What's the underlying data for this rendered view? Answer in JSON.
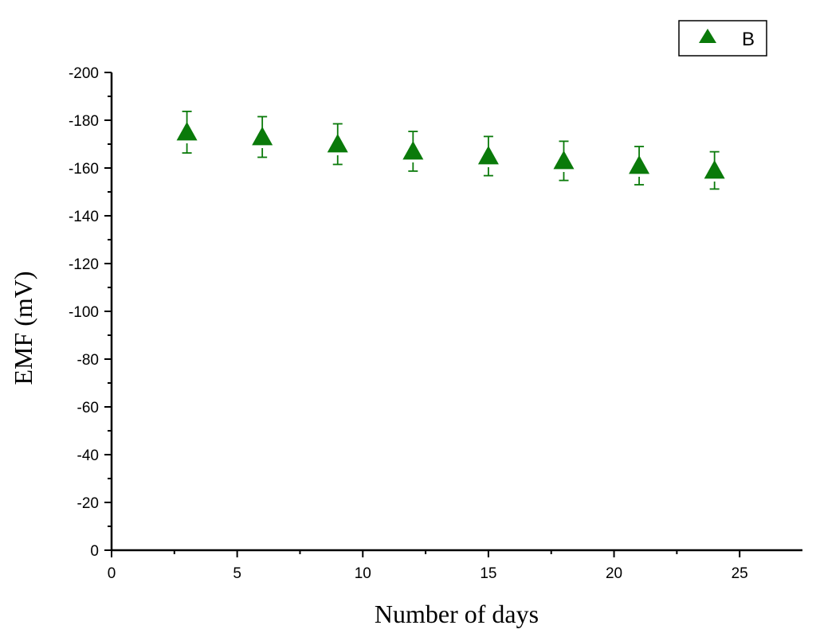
{
  "chart_data": {
    "type": "scatter",
    "xlabel": "Number of days",
    "ylabel": "EMF (mV)",
    "xlim": [
      0,
      27.5
    ],
    "ylim": [
      0,
      -200
    ],
    "y_axis_reversed": true,
    "x_ticks": [
      0,
      5,
      10,
      15,
      20,
      25
    ],
    "x_tick_labels": [
      "0",
      "5",
      "10",
      "15",
      "20",
      "25"
    ],
    "y_ticks": [
      0,
      -20,
      -40,
      -60,
      -80,
      -100,
      -120,
      -140,
      -160,
      -180,
      -200
    ],
    "y_tick_labels": [
      "0",
      "-20",
      "-40",
      "-60",
      "-80",
      "-100",
      "-120",
      "-140",
      "-160",
      "-180",
      "-200"
    ],
    "grid": false,
    "legend_position": "top-right",
    "series": [
      {
        "name": "B",
        "marker": "triangle-up",
        "color": "#0a7a0a",
        "points": [
          {
            "x": 3,
            "y": -175,
            "err": 8.7
          },
          {
            "x": 6,
            "y": -173,
            "err": 8.5
          },
          {
            "x": 9,
            "y": -170,
            "err": 8.5
          },
          {
            "x": 12,
            "y": -167,
            "err": 8.3
          },
          {
            "x": 15,
            "y": -165,
            "err": 8.2
          },
          {
            "x": 18,
            "y": -163,
            "err": 8.2
          },
          {
            "x": 21,
            "y": -161,
            "err": 8.0
          },
          {
            "x": 24,
            "y": -159,
            "err": 7.8
          }
        ]
      }
    ]
  }
}
